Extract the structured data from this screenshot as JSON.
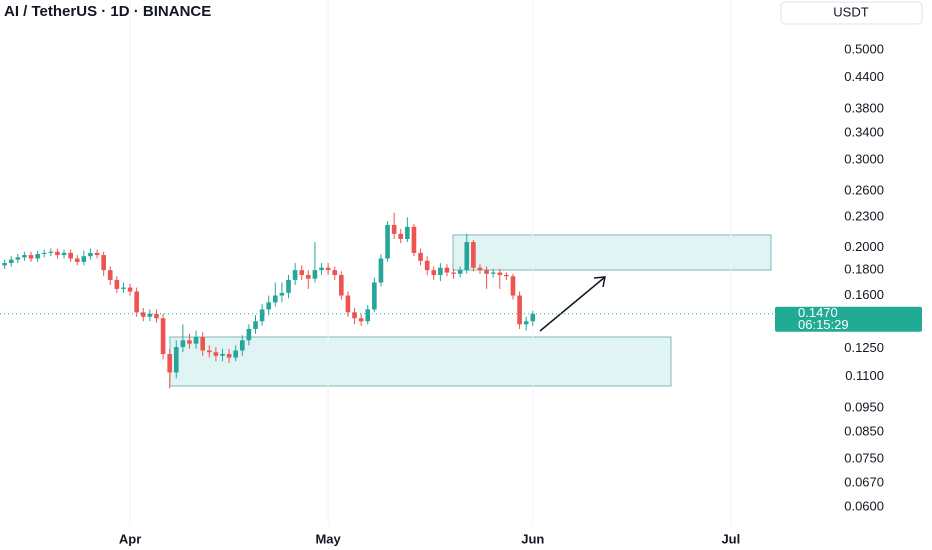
{
  "chart_data": {
    "type": "candlestick",
    "title": "AI / TetherUS · 1D · BINANCE",
    "currency_button": "USDT",
    "log_scale": true,
    "grid": "x",
    "up_color": "#26a69a",
    "down_color": "#ef5350",
    "xlim": [
      -19.7,
      99.2
    ],
    "xticks": [
      {
        "value": 0,
        "label": "Apr"
      },
      {
        "value": 30,
        "label": "May"
      },
      {
        "value": 61,
        "label": "Jun"
      },
      {
        "value": 91,
        "label": "Jul"
      }
    ],
    "ylim": [
      0.0552,
      0.63
    ],
    "yticks": [
      {
        "value": 0.5,
        "label": "0.5000"
      },
      {
        "value": 0.44,
        "label": "0.4400"
      },
      {
        "value": 0.38,
        "label": "0.3800"
      },
      {
        "value": 0.34,
        "label": "0.3400"
      },
      {
        "value": 0.3,
        "label": "0.3000"
      },
      {
        "value": 0.26,
        "label": "0.2600"
      },
      {
        "value": 0.23,
        "label": "0.2300"
      },
      {
        "value": 0.2,
        "label": "0.2000"
      },
      {
        "value": 0.18,
        "label": "0.1800"
      },
      {
        "value": 0.16,
        "label": "0.1600"
      },
      {
        "value": 0.125,
        "label": "0.1250"
      },
      {
        "value": 0.11,
        "label": "0.1100"
      },
      {
        "value": 0.095,
        "label": "0.0950"
      },
      {
        "value": 0.085,
        "label": "0.0850"
      },
      {
        "value": 0.075,
        "label": "0.0750"
      },
      {
        "value": 0.067,
        "label": "0.0670"
      },
      {
        "value": 0.06,
        "label": "0.0600"
      }
    ],
    "last_price": {
      "value": 0.147,
      "label": "0.1470"
    },
    "countdown": "06:15:29",
    "x": [
      -19,
      -18,
      -17,
      -16,
      -15,
      -14,
      -13,
      -12,
      -11,
      -10,
      -9,
      -8,
      -7,
      -6,
      -5,
      -4,
      -3,
      -2,
      -1,
      0,
      1,
      2,
      3,
      4,
      5,
      6,
      7,
      8,
      9,
      10,
      11,
      12,
      13,
      14,
      15,
      16,
      17,
      18,
      19,
      20,
      21,
      22,
      23,
      24,
      25,
      26,
      27,
      28,
      29,
      30,
      31,
      32,
      33,
      34,
      35,
      36,
      37,
      38,
      39,
      40,
      41,
      42,
      43,
      44,
      45,
      46,
      47,
      48,
      49,
      50,
      51,
      52,
      53,
      54,
      55,
      56,
      57,
      58,
      59,
      60,
      61
    ],
    "open": [
      0.184,
      0.186,
      0.189,
      0.191,
      0.193,
      0.19,
      0.194,
      0.195,
      0.196,
      0.193,
      0.195,
      0.19,
      0.187,
      0.192,
      0.195,
      0.193,
      0.18,
      0.172,
      0.165,
      0.166,
      0.163,
      0.148,
      0.145,
      0.147,
      0.144,
      0.122,
      0.112,
      0.126,
      0.13,
      0.128,
      0.132,
      0.124,
      0.123,
      0.121,
      0.122,
      0.12,
      0.124,
      0.13,
      0.137,
      0.142,
      0.15,
      0.155,
      0.16,
      0.162,
      0.172,
      0.18,
      0.176,
      0.173,
      0.18,
      0.182,
      0.18,
      0.176,
      0.16,
      0.148,
      0.144,
      0.142,
      0.15,
      0.17,
      0.19,
      0.222,
      0.213,
      0.208,
      0.22,
      0.195,
      0.188,
      0.18,
      0.176,
      0.182,
      0.178,
      0.177,
      0.18,
      0.205,
      0.182,
      0.18,
      0.177,
      0.178,
      0.176,
      0.175,
      0.16,
      0.14,
      0.142
    ],
    "high": [
      0.189,
      0.192,
      0.194,
      0.196,
      0.196,
      0.197,
      0.198,
      0.199,
      0.199,
      0.198,
      0.198,
      0.193,
      0.197,
      0.199,
      0.198,
      0.196,
      0.183,
      0.175,
      0.17,
      0.169,
      0.166,
      0.151,
      0.15,
      0.15,
      0.147,
      0.125,
      0.13,
      0.14,
      0.134,
      0.136,
      0.135,
      0.127,
      0.126,
      0.125,
      0.125,
      0.127,
      0.133,
      0.14,
      0.146,
      0.154,
      0.16,
      0.17,
      0.17,
      0.176,
      0.186,
      0.184,
      0.18,
      0.205,
      0.186,
      0.186,
      0.183,
      0.179,
      0.163,
      0.151,
      0.147,
      0.153,
      0.174,
      0.194,
      0.226,
      0.235,
      0.218,
      0.23,
      0.223,
      0.199,
      0.192,
      0.183,
      0.186,
      0.185,
      0.181,
      0.183,
      0.213,
      0.207,
      0.185,
      0.183,
      0.181,
      0.181,
      0.178,
      0.177,
      0.163,
      0.145,
      0.149
    ],
    "low": [
      0.181,
      0.183,
      0.186,
      0.188,
      0.187,
      0.187,
      0.191,
      0.192,
      0.19,
      0.19,
      0.187,
      0.184,
      0.184,
      0.189,
      0.19,
      0.175,
      0.168,
      0.162,
      0.162,
      0.16,
      0.145,
      0.142,
      0.142,
      0.141,
      0.119,
      0.104,
      0.109,
      0.123,
      0.125,
      0.125,
      0.121,
      0.12,
      0.118,
      0.118,
      0.117,
      0.118,
      0.121,
      0.127,
      0.134,
      0.139,
      0.146,
      0.152,
      0.155,
      0.158,
      0.168,
      0.172,
      0.165,
      0.17,
      0.176,
      0.176,
      0.172,
      0.157,
      0.145,
      0.14,
      0.139,
      0.14,
      0.148,
      0.167,
      0.187,
      0.208,
      0.204,
      0.205,
      0.192,
      0.184,
      0.176,
      0.172,
      0.171,
      0.175,
      0.173,
      0.174,
      0.177,
      0.179,
      0.177,
      0.165,
      0.174,
      0.165,
      0.172,
      0.157,
      0.137,
      0.136,
      0.139
    ],
    "close": [
      0.186,
      0.189,
      0.191,
      0.193,
      0.19,
      0.194,
      0.195,
      0.196,
      0.193,
      0.195,
      0.19,
      0.187,
      0.192,
      0.195,
      0.193,
      0.18,
      0.172,
      0.165,
      0.166,
      0.163,
      0.148,
      0.145,
      0.147,
      0.144,
      0.122,
      0.112,
      0.126,
      0.13,
      0.128,
      0.132,
      0.124,
      0.123,
      0.121,
      0.122,
      0.12,
      0.124,
      0.13,
      0.137,
      0.142,
      0.15,
      0.155,
      0.16,
      0.162,
      0.172,
      0.18,
      0.176,
      0.173,
      0.18,
      0.182,
      0.18,
      0.176,
      0.16,
      0.148,
      0.144,
      0.142,
      0.15,
      0.17,
      0.19,
      0.222,
      0.213,
      0.208,
      0.22,
      0.195,
      0.188,
      0.18,
      0.176,
      0.182,
      0.178,
      0.177,
      0.18,
      0.205,
      0.182,
      0.18,
      0.177,
      0.178,
      0.176,
      0.175,
      0.16,
      0.14,
      0.142,
      0.147
    ]
  }
}
